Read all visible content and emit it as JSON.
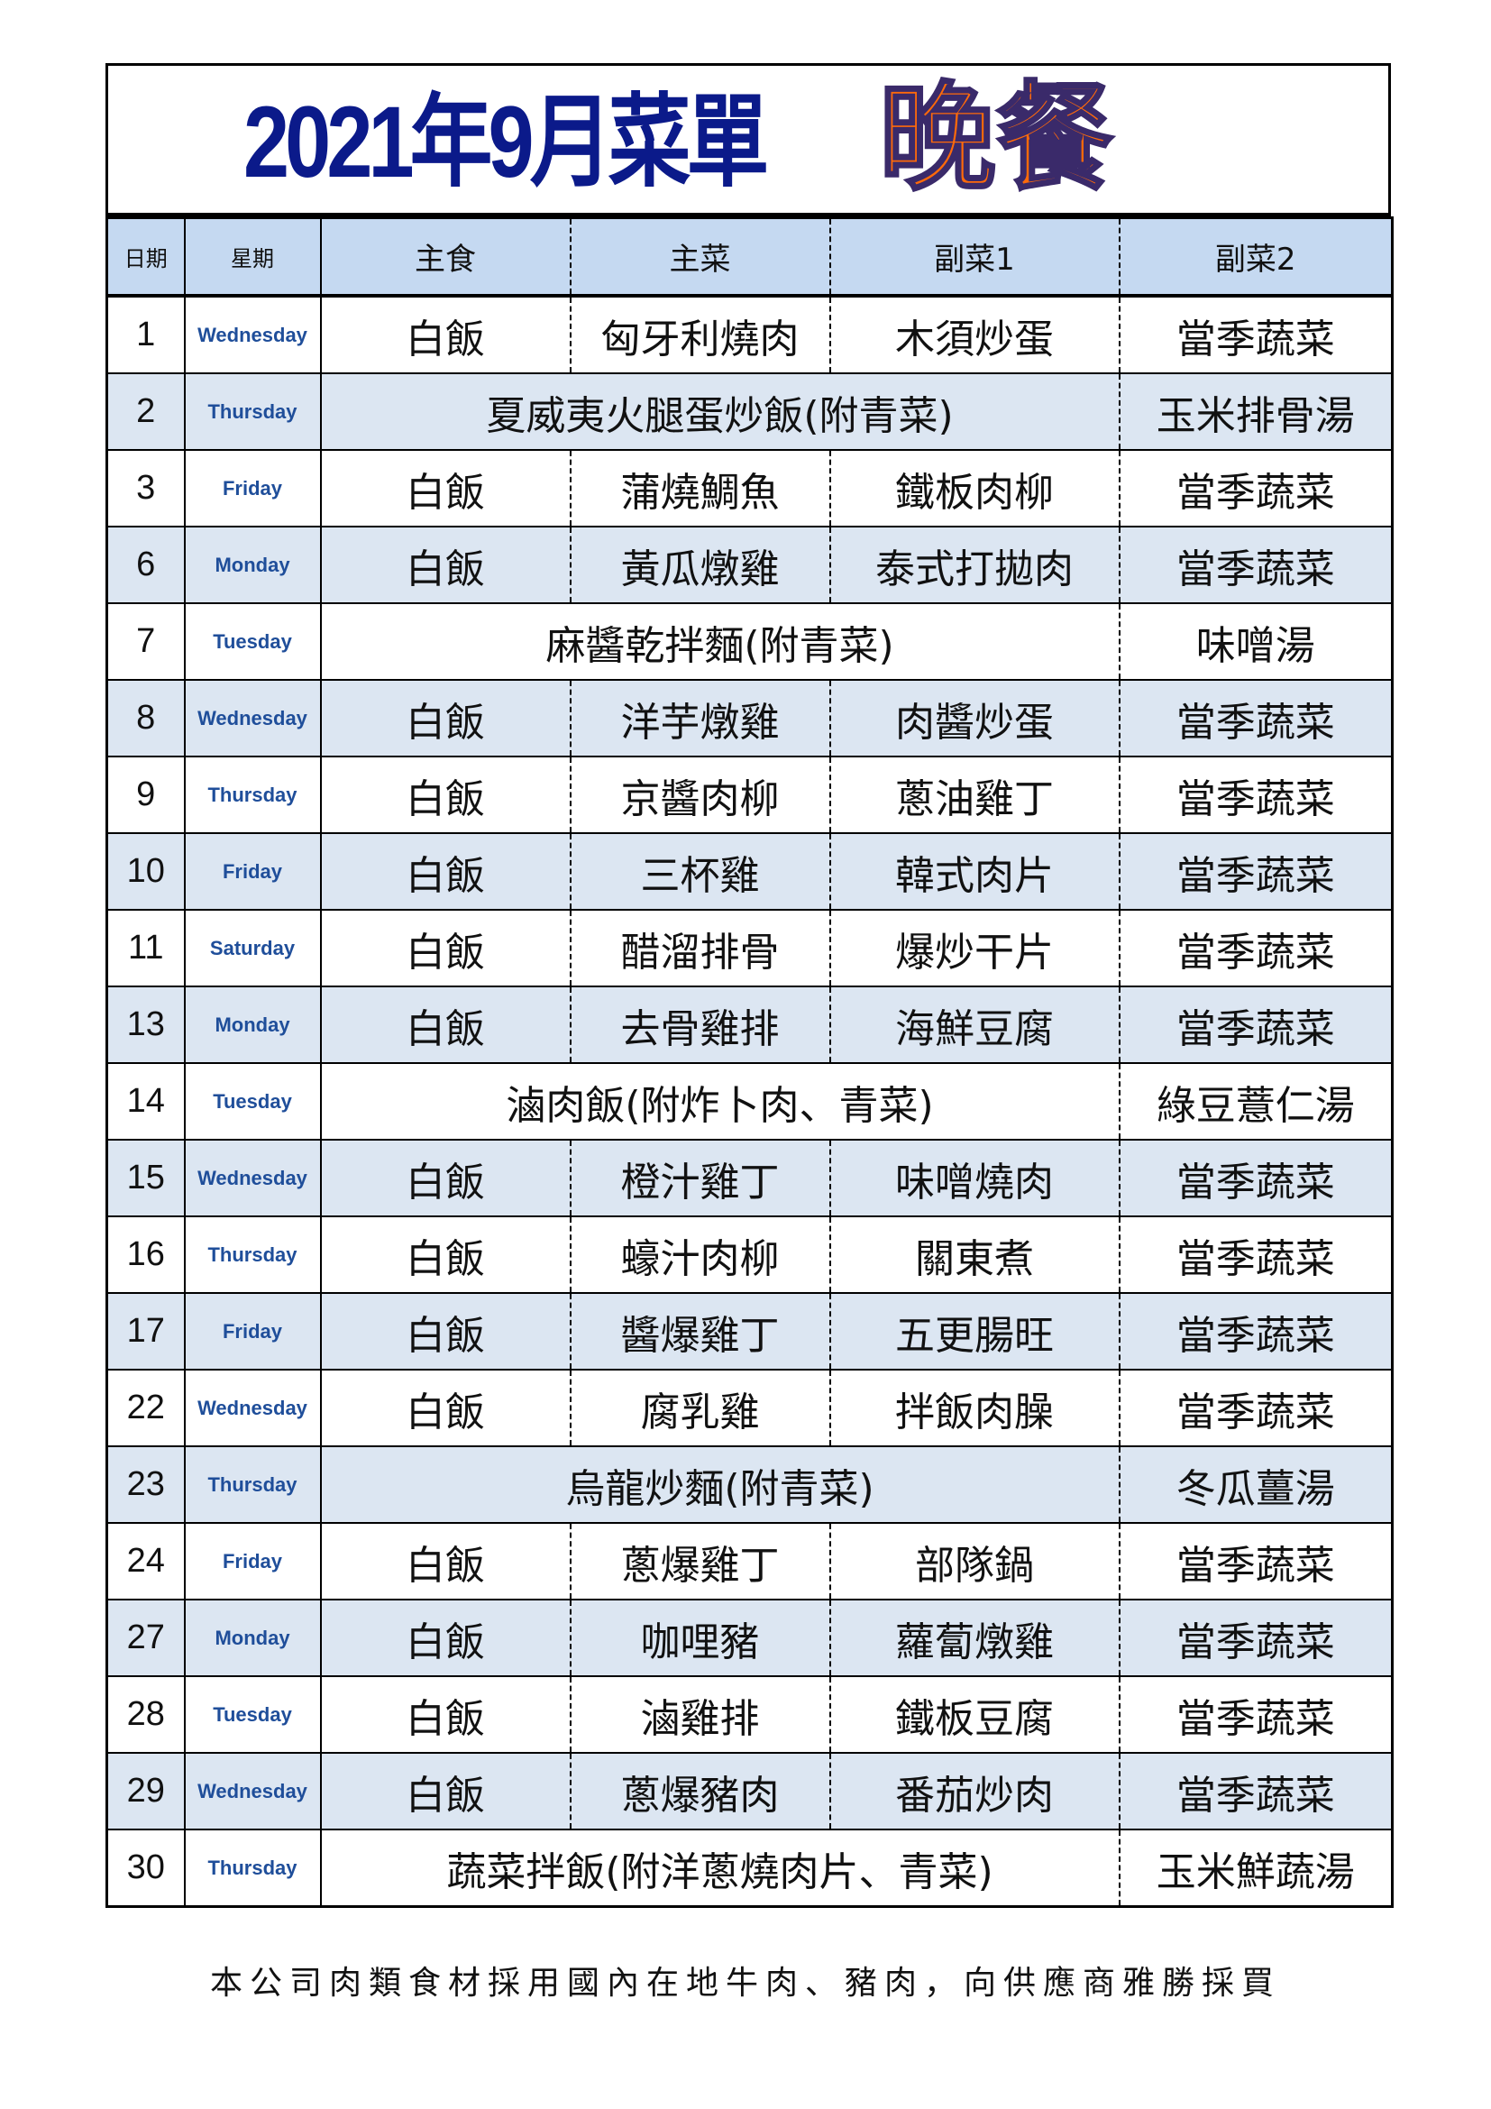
{
  "title": {
    "main": "2021年9月菜單",
    "meal": "晚餐"
  },
  "colors": {
    "title": "#0b1a8a",
    "meal": "#ff6a0a",
    "header_bg": "#c5d9f1",
    "stripe_bg": "#dce6f2",
    "weekday": "#1f4e9a"
  },
  "headers": [
    "日期",
    "星期",
    "主食",
    "主菜",
    "副菜1",
    "副菜2"
  ],
  "rows": [
    {
      "date": "1",
      "day": "Wednesday",
      "staple": "白飯",
      "main": "匈牙利燒肉",
      "side1": "木須炒蛋",
      "side2": "當季蔬菜"
    },
    {
      "date": "2",
      "day": "Thursday",
      "combo": "夏威夷火腿蛋炒飯(附青菜)",
      "side2": "玉米排骨湯"
    },
    {
      "date": "3",
      "day": "Friday",
      "staple": "白飯",
      "main": "蒲燒鯛魚",
      "side1": "鐵板肉柳",
      "side2": "當季蔬菜"
    },
    {
      "date": "6",
      "day": "Monday",
      "staple": "白飯",
      "main": "黃瓜燉雞",
      "side1": "泰式打拋肉",
      "side2": "當季蔬菜"
    },
    {
      "date": "7",
      "day": "Tuesday",
      "combo": "麻醬乾拌麵(附青菜)",
      "side2": "味噌湯"
    },
    {
      "date": "8",
      "day": "Wednesday",
      "staple": "白飯",
      "main": "洋芋燉雞",
      "side1": "肉醬炒蛋",
      "side2": "當季蔬菜"
    },
    {
      "date": "9",
      "day": "Thursday",
      "staple": "白飯",
      "main": "京醬肉柳",
      "side1": "蔥油雞丁",
      "side2": "當季蔬菜"
    },
    {
      "date": "10",
      "day": "Friday",
      "staple": "白飯",
      "main": "三杯雞",
      "side1": "韓式肉片",
      "side2": "當季蔬菜"
    },
    {
      "date": "11",
      "day": "Saturday",
      "staple": "白飯",
      "main": "醋溜排骨",
      "side1": "爆炒干片",
      "side2": "當季蔬菜"
    },
    {
      "date": "13",
      "day": "Monday",
      "staple": "白飯",
      "main": "去骨雞排",
      "side1": "海鮮豆腐",
      "side2": "當季蔬菜"
    },
    {
      "date": "14",
      "day": "Tuesday",
      "combo": "滷肉飯(附炸卜肉、青菜)",
      "side2": "綠豆薏仁湯"
    },
    {
      "date": "15",
      "day": "Wednesday",
      "staple": "白飯",
      "main": "橙汁雞丁",
      "side1": "味噌燒肉",
      "side2": "當季蔬菜"
    },
    {
      "date": "16",
      "day": "Thursday",
      "staple": "白飯",
      "main": "蠔汁肉柳",
      "side1": "關東煮",
      "side2": "當季蔬菜"
    },
    {
      "date": "17",
      "day": "Friday",
      "staple": "白飯",
      "main": "醬爆雞丁",
      "side1": "五更腸旺",
      "side2": "當季蔬菜"
    },
    {
      "date": "22",
      "day": "Wednesday",
      "staple": "白飯",
      "main": "腐乳雞",
      "side1": "拌飯肉臊",
      "side2": "當季蔬菜"
    },
    {
      "date": "23",
      "day": "Thursday",
      "combo": "烏龍炒麵(附青菜)",
      "side2": "冬瓜薑湯"
    },
    {
      "date": "24",
      "day": "Friday",
      "staple": "白飯",
      "main": "蔥爆雞丁",
      "side1": "部隊鍋",
      "side2": "當季蔬菜"
    },
    {
      "date": "27",
      "day": "Monday",
      "staple": "白飯",
      "main": "咖哩豬",
      "side1": "蘿蔔燉雞",
      "side2": "當季蔬菜"
    },
    {
      "date": "28",
      "day": "Tuesday",
      "staple": "白飯",
      "main": "滷雞排",
      "side1": "鐵板豆腐",
      "side2": "當季蔬菜"
    },
    {
      "date": "29",
      "day": "Wednesday",
      "staple": "白飯",
      "main": "蔥爆豬肉",
      "side1": "番茄炒肉",
      "side2": "當季蔬菜"
    },
    {
      "date": "30",
      "day": "Thursday",
      "combo": "蔬菜拌飯(附洋蔥燒肉片、青菜)",
      "side2": "玉米鮮蔬湯"
    }
  ],
  "footer": "本公司肉類食材採用國內在地牛肉、豬肉，向供應商雅勝採買"
}
